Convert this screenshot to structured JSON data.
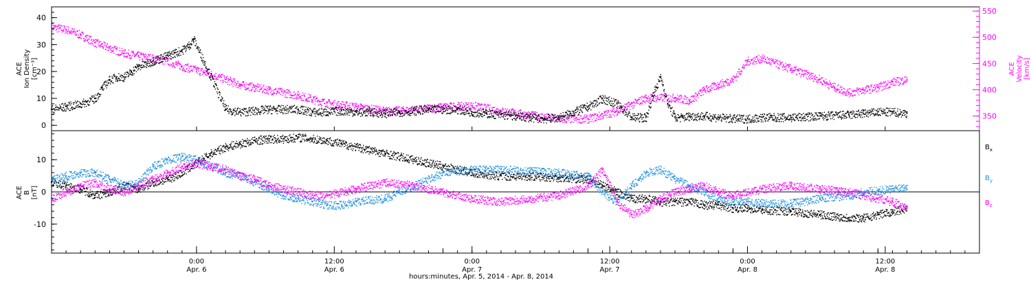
{
  "colors": {
    "axis": "#000000",
    "density": "#000000",
    "velocity": "#ff00ff",
    "bx": "#000000",
    "by": "#1e8fe0",
    "bz": "#ff00ff"
  },
  "xaxis": {
    "title": "hours:minutes, Apr. 5, 2014 - Apr. 8, 2014",
    "range_hours": [
      -5,
      59
    ],
    "major_ticks": [
      {
        "t": 5,
        "time": "0:00",
        "date": "Apr. 6"
      },
      {
        "t": 14.5,
        "time": "12:00",
        "date": "Apr. 6"
      },
      {
        "t": 24,
        "time": "0:00",
        "date": "Apr. 7"
      },
      {
        "t": 33.5,
        "time": "12:00",
        "date": "Apr. 7"
      },
      {
        "t": 43,
        "time": "0:00",
        "date": "Apr. 8"
      },
      {
        "t": 52.5,
        "time": "12:00",
        "date": "Apr. 8"
      }
    ]
  },
  "chart_data": [
    {
      "type": "scatter",
      "panel": "top",
      "ylabel_left": [
        "ACE",
        "Ion Density",
        "[cm⁻³]"
      ],
      "ylabel_right": [
        "ACE",
        "Velocity",
        "[km/s]"
      ],
      "ylim_left": [
        -2,
        44
      ],
      "yticks_left": [
        0,
        10,
        20,
        30,
        40
      ],
      "ylim_right": [
        322,
        558
      ],
      "yticks_right": [
        350,
        400,
        450,
        500,
        550
      ],
      "series": [
        {
          "key": "density",
          "axis": "left",
          "x": [
            -5,
            -4,
            -3,
            -2,
            -1.5,
            -1,
            -0.5,
            0,
            0.5,
            1,
            1.6,
            2,
            2.5,
            3,
            3.5,
            4,
            4.5,
            4.8,
            7,
            8,
            10,
            12,
            13,
            14,
            15,
            16,
            17,
            18,
            19,
            20,
            21,
            22,
            23,
            24,
            25,
            26,
            27,
            28,
            29,
            30,
            31,
            32,
            33,
            34,
            35,
            36,
            36.5,
            37,
            37.5,
            38,
            38.5,
            39,
            40,
            41,
            42,
            43,
            44,
            46,
            48,
            50,
            51,
            52,
            53,
            54
          ],
          "y": [
            6,
            7,
            8,
            10,
            14,
            17,
            18,
            18,
            20,
            22,
            23,
            24,
            25,
            26,
            27,
            28,
            30,
            32,
            6,
            5,
            6,
            6,
            5,
            5,
            5.5,
            5,
            5,
            4.5,
            5,
            5.5,
            6,
            6,
            6,
            5,
            4.5,
            4,
            3.5,
            3,
            2.5,
            3,
            5,
            7,
            10,
            8,
            3,
            3,
            12,
            18,
            8,
            3,
            3,
            3.5,
            3.5,
            3,
            2.5,
            2.5,
            3,
            3,
            3.5,
            4,
            4.5,
            5,
            5,
            4.5
          ]
        },
        {
          "key": "velocity",
          "axis": "right",
          "x": [
            -5,
            -4,
            -3,
            -2,
            -1,
            0,
            1,
            2,
            3,
            4,
            5,
            6,
            7,
            8,
            9,
            10,
            12,
            14,
            16,
            18,
            20,
            22,
            24,
            26,
            28,
            30,
            32,
            34,
            36,
            38,
            39,
            40,
            41,
            42,
            43,
            44,
            46,
            48,
            49,
            50,
            51,
            52,
            53,
            54
          ],
          "y": [
            520,
            515,
            505,
            490,
            480,
            470,
            465,
            460,
            455,
            445,
            438,
            430,
            420,
            410,
            405,
            400,
            390,
            375,
            368,
            360,
            362,
            368,
            370,
            360,
            352,
            345,
            345,
            360,
            385,
            385,
            380,
            400,
            410,
            420,
            455,
            460,
            440,
            420,
            405,
            395,
            400,
            405,
            415,
            420
          ]
        }
      ]
    },
    {
      "type": "scatter",
      "panel": "bottom",
      "ylabel_left": [
        "ACE",
        "B",
        "[nT]"
      ],
      "ylim": [
        -19,
        19
      ],
      "yticks": [
        -10,
        0,
        10
      ],
      "legend": [
        {
          "key": "bx",
          "text": "B",
          "sub": "x"
        },
        {
          "key": "by",
          "text": "B",
          "sub": "y"
        },
        {
          "key": "bz",
          "text": "B",
          "sub": "z"
        }
      ],
      "series": [
        {
          "key": "bx",
          "x": [
            -5,
            -4,
            -3,
            -2,
            -1,
            0,
            1,
            2,
            3,
            4,
            5,
            6,
            7,
            8,
            9,
            10,
            11,
            12,
            13,
            14,
            15,
            16,
            18,
            20,
            22,
            24,
            26,
            28,
            30,
            32,
            33,
            34,
            35,
            36,
            37,
            38,
            39,
            40,
            41,
            42,
            43,
            44,
            46,
            48,
            50,
            51,
            52,
            53,
            54
          ],
          "y": [
            3,
            2,
            1,
            -1,
            0,
            2,
            1,
            3,
            4,
            6,
            9,
            12,
            14,
            15,
            16,
            16.5,
            16.5,
            17,
            16.5,
            16,
            15,
            14,
            12,
            10,
            8,
            6,
            5,
            5,
            4.5,
            4,
            2,
            0,
            -2,
            -2,
            -3,
            -3,
            -3,
            -4,
            -4,
            -5,
            -5,
            -5.5,
            -6,
            -7,
            -8,
            -8,
            -7,
            -6,
            -5
          ]
        },
        {
          "key": "by",
          "x": [
            -5,
            -4,
            -3,
            -2,
            -1,
            0,
            1,
            2,
            3,
            4,
            5,
            6,
            7,
            8,
            9,
            10,
            11,
            12,
            13,
            14,
            15,
            16,
            18,
            20,
            22,
            24,
            26,
            28,
            30,
            32,
            33,
            34,
            35,
            36,
            37,
            38,
            39,
            40,
            41,
            42,
            43,
            44,
            46,
            48,
            50,
            51,
            52,
            53,
            54
          ],
          "y": [
            4,
            5,
            6,
            6,
            4,
            2,
            3,
            8,
            10,
            11,
            10,
            8,
            6,
            5,
            3,
            1,
            -1,
            -2,
            -3,
            -4,
            -4,
            -3,
            -2,
            2,
            6,
            7,
            7,
            6.5,
            6,
            5,
            0,
            -3,
            2,
            6,
            7,
            4,
            2,
            0,
            -2,
            -3,
            -3,
            -3.5,
            -3.5,
            -2,
            -1,
            0,
            0.5,
            1,
            2
          ]
        },
        {
          "key": "bz",
          "x": [
            -5,
            -4,
            -3,
            -2,
            -1,
            0,
            1,
            2,
            3,
            4,
            5,
            6,
            7,
            8,
            9,
            10,
            11,
            12,
            13,
            14,
            15,
            16,
            18,
            20,
            22,
            24,
            26,
            28,
            30,
            32,
            33,
            34,
            35,
            36,
            37,
            38,
            39,
            40,
            41,
            42,
            43,
            44,
            46,
            48,
            50,
            51,
            52,
            53,
            54
          ],
          "y": [
            -2,
            0,
            2,
            3,
            1,
            0,
            2,
            4,
            6,
            8,
            9,
            8,
            7,
            5,
            4,
            2,
            1,
            0,
            -1,
            -1,
            0,
            1,
            3,
            2,
            0,
            -2,
            -3,
            -2,
            -1,
            2,
            7,
            -3,
            -7,
            -5,
            -2,
            0,
            1,
            2,
            0,
            -1,
            0,
            1,
            2,
            1,
            0,
            -1,
            -2,
            -3,
            -5
          ]
        }
      ]
    }
  ]
}
